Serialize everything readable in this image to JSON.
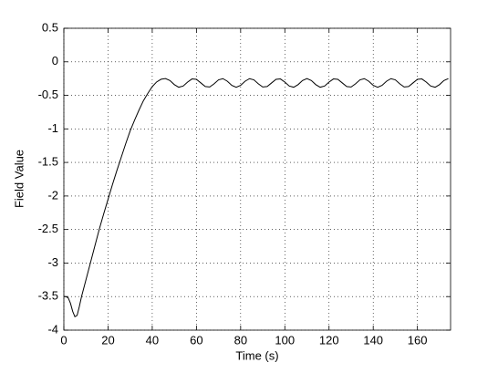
{
  "chart_data": {
    "type": "line",
    "x_label": "Time (s)",
    "y_label": "Field Value",
    "xlim": [
      0,
      175
    ],
    "xticks": [
      0,
      20,
      40,
      60,
      80,
      100,
      120,
      140,
      160
    ],
    "ylim": [
      -4,
      0.5
    ],
    "yticks": [
      -4,
      -3.5,
      -3,
      -2.5,
      -2,
      -1.5,
      -1,
      -0.5,
      0,
      0.5
    ],
    "grid": true,
    "series": [
      {
        "color": "#000000",
        "x": [
          0,
          1,
          2,
          3,
          4,
          5,
          6,
          7,
          8,
          10,
          12,
          14,
          16,
          18,
          20,
          22,
          24,
          26,
          28,
          30,
          32,
          34,
          36,
          38,
          40,
          42,
          44,
          46,
          48,
          50,
          52,
          54,
          56,
          58,
          60,
          62,
          64,
          66,
          68,
          70,
          72,
          74,
          76,
          78,
          80,
          82,
          84,
          86,
          88,
          90,
          92,
          94,
          96,
          98,
          100,
          102,
          104,
          106,
          108,
          110,
          112,
          114,
          116,
          118,
          120,
          122,
          124,
          126,
          128,
          130,
          132,
          134,
          136,
          138,
          140,
          142,
          144,
          146,
          148,
          150,
          152,
          154,
          156,
          158,
          160,
          162,
          164,
          166,
          168,
          170,
          172,
          174
        ],
        "values": [
          -3.5,
          -3.5,
          -3.52,
          -3.6,
          -3.72,
          -3.8,
          -3.78,
          -3.65,
          -3.5,
          -3.25,
          -3.0,
          -2.75,
          -2.5,
          -2.27,
          -2.05,
          -1.83,
          -1.62,
          -1.42,
          -1.22,
          -1.03,
          -0.87,
          -0.72,
          -0.58,
          -0.47,
          -0.37,
          -0.3,
          -0.26,
          -0.25,
          -0.279,
          -0.34,
          -0.379,
          -0.361,
          -0.302,
          -0.255,
          -0.261,
          -0.315,
          -0.369,
          -0.375,
          -0.328,
          -0.269,
          -0.251,
          -0.29,
          -0.351,
          -0.38,
          -0.351,
          -0.29,
          -0.251,
          -0.269,
          -0.328,
          -0.375,
          -0.369,
          -0.315,
          -0.261,
          -0.255,
          -0.302,
          -0.361,
          -0.379,
          -0.34,
          -0.279,
          -0.25,
          -0.279,
          -0.34,
          -0.379,
          -0.361,
          -0.302,
          -0.255,
          -0.261,
          -0.315,
          -0.369,
          -0.375,
          -0.328,
          -0.269,
          -0.251,
          -0.29,
          -0.351,
          -0.38,
          -0.351,
          -0.29,
          -0.251,
          -0.269,
          -0.328,
          -0.375,
          -0.369,
          -0.315,
          -0.261,
          -0.255,
          -0.302,
          -0.361,
          -0.379,
          -0.34,
          -0.279,
          -0.25
        ]
      }
    ]
  }
}
